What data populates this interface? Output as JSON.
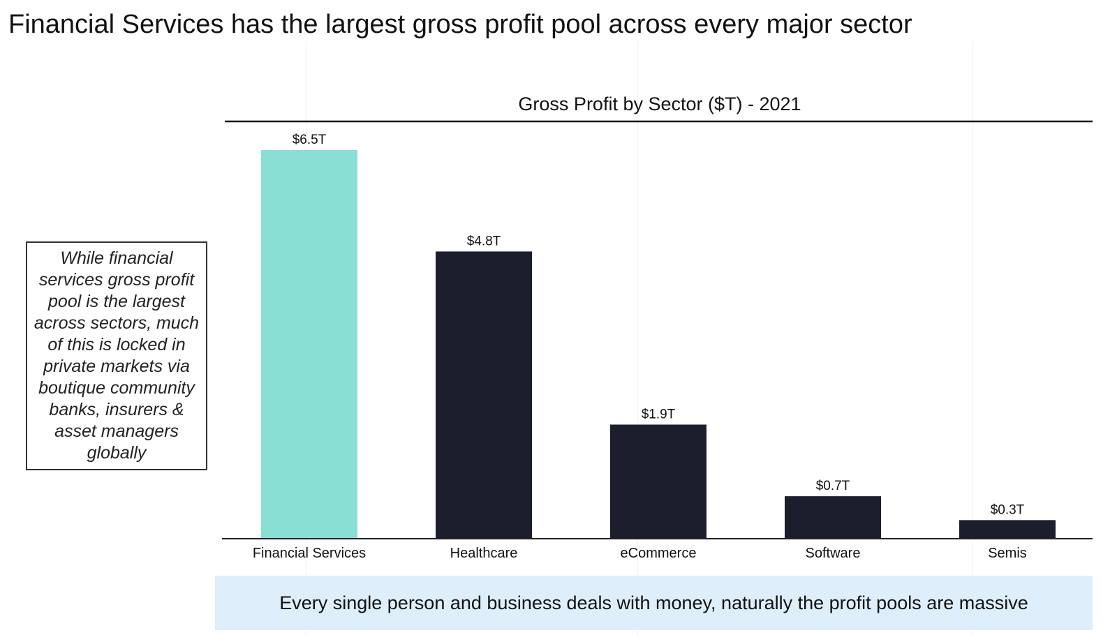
{
  "page": {
    "title": "Financial Services has the largest gross profit pool across every major sector",
    "callout_text": "While financial services gross profit pool is the largest across sectors, much of this is locked in private markets via boutique community banks, insurers & asset managers globally",
    "footer_text": "Every single person and business deals with money, naturally the profit pools are massive"
  },
  "colors": {
    "highlight": "#8adfd4",
    "bar": "#1c1e2d",
    "footer_background": "#deeefa"
  },
  "chart_data": {
    "type": "bar",
    "title": "Gross Profit by Sector ($T) - 2021",
    "categories": [
      "Financial Services",
      "Healthcare",
      "eCommerce",
      "Software",
      "Semis"
    ],
    "values": [
      6.5,
      4.8,
      1.9,
      0.7,
      0.3
    ],
    "data_labels": [
      "$6.5T",
      "$4.8T",
      "$1.9T",
      "$0.7T",
      "$0.3T"
    ],
    "highlight_category": "Financial Services",
    "xlabel": "",
    "ylabel": "",
    "ylim": [
      0,
      6.5
    ],
    "grid": false,
    "legend": "none"
  }
}
